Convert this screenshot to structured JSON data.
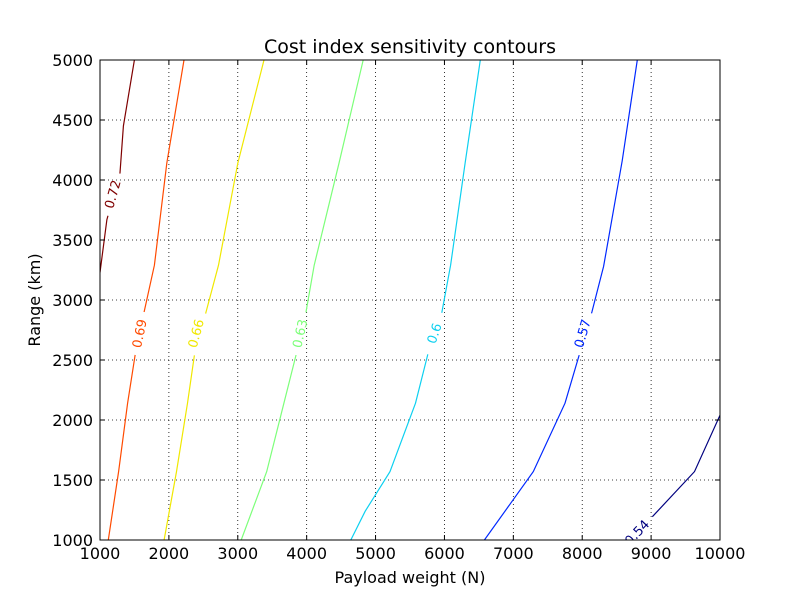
{
  "chart_data": {
    "type": "contour",
    "title": "Cost index sensitivity contours",
    "xlabel": "Payload weight (N)",
    "ylabel": "Range (km)",
    "xlim": [
      1000,
      10000
    ],
    "ylim": [
      1000,
      5000
    ],
    "xticks": [
      1000,
      2000,
      3000,
      4000,
      5000,
      6000,
      7000,
      8000,
      9000,
      10000
    ],
    "yticks": [
      1000,
      1500,
      2000,
      2500,
      3000,
      3500,
      4000,
      4500,
      5000
    ],
    "grid": true,
    "colormap": "jet",
    "contours": [
      {
        "level": "0.54",
        "color": "#00007f",
        "label_at": [
          8800,
          1060
        ],
        "points": [
          [
            8930,
            1140
          ],
          [
            9630,
            1570
          ],
          [
            10000,
            2040
          ]
        ]
      },
      {
        "level": "0.57",
        "color": "#0028ff",
        "label_at": [
          8010,
          2720
        ],
        "points": [
          [
            6580,
            1000
          ],
          [
            7290,
            1570
          ],
          [
            7750,
            2140
          ],
          [
            7960,
            2550
          ],
          [
            8140,
            2900
          ],
          [
            8310,
            3280
          ],
          [
            8580,
            4160
          ],
          [
            8800,
            5000
          ]
        ]
      },
      {
        "level": "0.6",
        "color": "#0dd0f0",
        "label_at": [
          5860,
          2720
        ],
        "points": [
          [
            4640,
            1000
          ],
          [
            4850,
            1240
          ],
          [
            5210,
            1570
          ],
          [
            5580,
            2140
          ],
          [
            5760,
            2550
          ],
          [
            5960,
            2890
          ],
          [
            6090,
            3290
          ],
          [
            6300,
            4140
          ],
          [
            6520,
            5000
          ]
        ]
      },
      {
        "level": "0.63",
        "color": "#7dff7a",
        "label_at": [
          3910,
          2720
        ],
        "points": [
          [
            3050,
            1000
          ],
          [
            3420,
            1570
          ],
          [
            3670,
            2140
          ],
          [
            3850,
            2550
          ],
          [
            3990,
            2900
          ],
          [
            4110,
            3290
          ],
          [
            4470,
            4140
          ],
          [
            4820,
            5000
          ]
        ]
      },
      {
        "level": "0.66",
        "color": "#f0e800",
        "label_at": [
          2400,
          2720
        ],
        "points": [
          [
            1930,
            1000
          ],
          [
            2110,
            1570
          ],
          [
            2270,
            2140
          ],
          [
            2370,
            2540
          ],
          [
            2530,
            2880
          ],
          [
            2720,
            3290
          ],
          [
            3000,
            4140
          ],
          [
            3380,
            5000
          ]
        ]
      },
      {
        "level": "0.69",
        "color": "#ff4a00",
        "label_at": [
          1580,
          2720
        ],
        "points": [
          [
            1120,
            1000
          ],
          [
            1270,
            1570
          ],
          [
            1400,
            2140
          ],
          [
            1510,
            2540
          ],
          [
            1640,
            2900
          ],
          [
            1790,
            3290
          ],
          [
            1970,
            4140
          ],
          [
            2220,
            5000
          ]
        ]
      },
      {
        "level": "0.72",
        "color": "#7f0000",
        "label_at": [
          1190,
          3880
        ],
        "points": [
          [
            1000,
            3230
          ],
          [
            1100,
            3670
          ],
          [
            1290,
            4060
          ],
          [
            1340,
            4450
          ],
          [
            1500,
            5000
          ]
        ]
      }
    ]
  }
}
